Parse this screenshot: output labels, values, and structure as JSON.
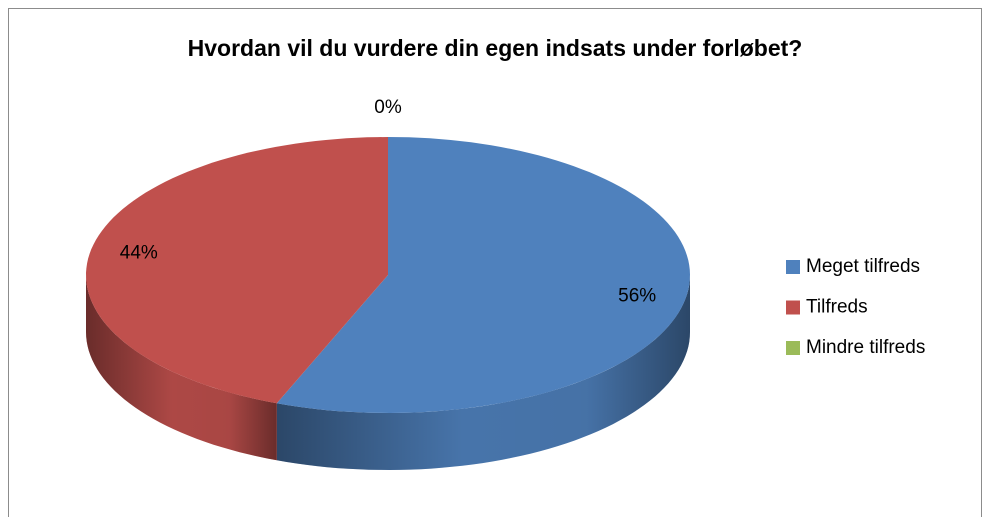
{
  "chart_data": {
    "type": "pie",
    "title": "Hvordan vil du vurdere din egen indsats under forløbet?",
    "categories": [
      "Meget tilfreds",
      "Tilfreds",
      "Mindre tilfreds"
    ],
    "values": [
      56,
      44,
      0
    ],
    "value_labels": [
      "56%",
      "44%",
      "0%"
    ],
    "colors": [
      "#4f81bd",
      "#c0504d",
      "#9bbb59"
    ],
    "legend": "right"
  }
}
